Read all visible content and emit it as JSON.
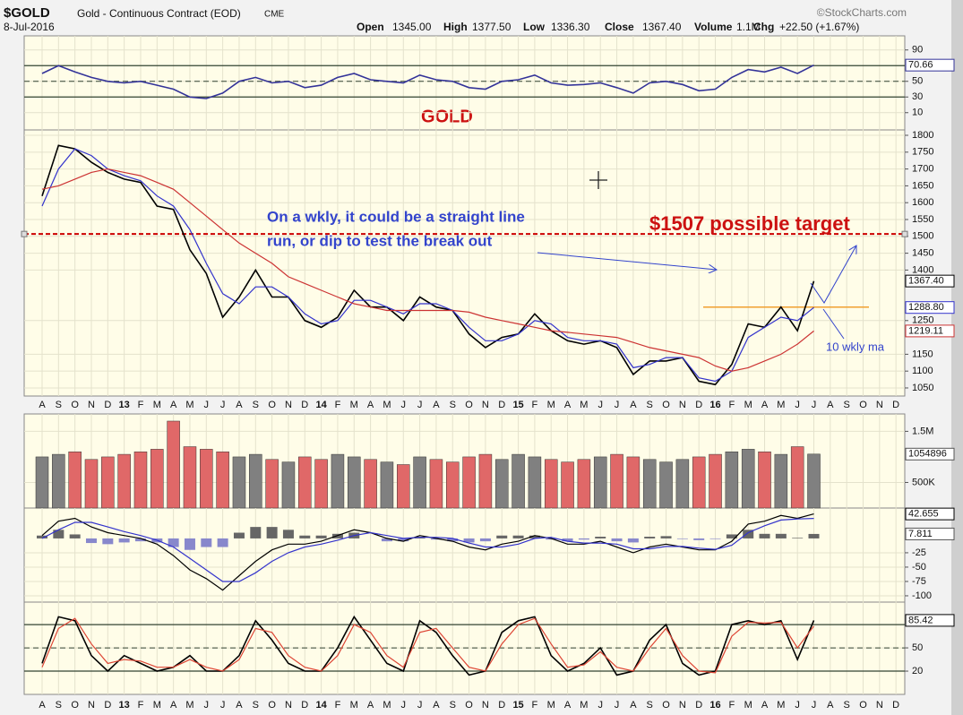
{
  "header": {
    "symbol": "$GOLD",
    "name": "Gold - Continuous Contract (EOD)",
    "exchange": "CME",
    "date": "8-Jul-2016",
    "source": "©StockCharts.com",
    "stats": [
      [
        "Open",
        "1345.00"
      ],
      [
        "High",
        "1377.50"
      ],
      [
        "Low",
        "1336.30"
      ],
      [
        "Close",
        "1367.40"
      ],
      [
        "Volume",
        "1.1M"
      ],
      [
        "Chg",
        "+22.50 (+1.67%)"
      ]
    ]
  },
  "chart_data": [
    {
      "type": "line",
      "categories": [
        "A",
        "S",
        "O",
        "N",
        "D",
        "13",
        "F",
        "M",
        "A",
        "M",
        "J",
        "J",
        "A",
        "S",
        "O",
        "N",
        "D",
        "14",
        "F",
        "M",
        "A",
        "M",
        "J",
        "J",
        "A",
        "S",
        "O",
        "N",
        "D",
        "15",
        "F",
        "M",
        "A",
        "M",
        "J",
        "J",
        "A",
        "S",
        "O",
        "N",
        "D",
        "16",
        "F",
        "M",
        "A",
        "M",
        "J",
        "J",
        "A",
        "S",
        "O",
        "N",
        "D"
      ],
      "series": [
        {
          "color": "#000000",
          "end_label": "1367.40",
          "values": [
            1620,
            1770,
            1760,
            1720,
            1690,
            1670,
            1660,
            1590,
            1580,
            1460,
            1390,
            1260,
            1320,
            1400,
            1320,
            1320,
            1250,
            1230,
            1260,
            1340,
            1290,
            1290,
            1250,
            1320,
            1290,
            1280,
            1210,
            1170,
            1200,
            1210,
            1270,
            1220,
            1190,
            1180,
            1190,
            1170,
            1090,
            1130,
            1130,
            1140,
            1070,
            1060,
            1120,
            1240,
            1230,
            1290,
            1220,
            1367.4,
            null,
            null,
            null,
            null,
            null
          ]
        },
        {
          "color": "#3333cc",
          "end_label": "1288.80",
          "values": [
            1590,
            1700,
            1760,
            1740,
            1700,
            1680,
            1665,
            1620,
            1590,
            1520,
            1420,
            1330,
            1300,
            1350,
            1350,
            1320,
            1270,
            1240,
            1250,
            1310,
            1310,
            1290,
            1270,
            1300,
            1300,
            1280,
            1230,
            1190,
            1190,
            1210,
            1250,
            1240,
            1200,
            1190,
            1190,
            1180,
            1110,
            1120,
            1140,
            1140,
            1080,
            1070,
            1100,
            1200,
            1230,
            1260,
            1250,
            1288.8,
            null,
            null,
            null,
            null,
            null
          ]
        },
        {
          "color": "#cc3333",
          "end_label": "1219.11",
          "values": [
            1640,
            1650,
            1670,
            1690,
            1700,
            1690,
            1680,
            1660,
            1640,
            1600,
            1560,
            1520,
            1480,
            1450,
            1420,
            1380,
            1360,
            1340,
            1320,
            1300,
            1290,
            1280,
            1280,
            1280,
            1280,
            1280,
            1275,
            1260,
            1250,
            1240,
            1230,
            1220,
            1215,
            1210,
            1205,
            1200,
            1185,
            1170,
            1160,
            1150,
            1140,
            1115,
            1100,
            1110,
            1130,
            1150,
            1180,
            1219.11,
            null,
            null,
            null,
            null,
            null
          ]
        }
      ],
      "ylim": [
        1026,
        1816
      ],
      "yticks": [
        1800,
        1750,
        1700,
        1650,
        1600,
        1550,
        1500,
        1450,
        1400,
        1250,
        1150,
        1100,
        1050
      ],
      "grid": true,
      "target_line": {
        "value": 1507,
        "color": "#cc0000"
      },
      "support_line": {
        "value": 1290,
        "color": "#f0a030"
      },
      "annotations": {
        "title": "GOLD",
        "note": [
          "On a wkly, it could be a straight line",
          "run, or dip to test the break out"
        ],
        "target": "$1507 possible target",
        "ma_note": "10 wkly ma"
      }
    },
    {
      "type": "line",
      "series": [
        {
          "color": "#333399",
          "end_label": "70.66",
          "values": [
            60,
            70,
            62,
            55,
            50,
            48,
            50,
            45,
            40,
            30,
            28,
            35,
            50,
            55,
            48,
            50,
            42,
            45,
            55,
            60,
            52,
            50,
            48,
            58,
            52,
            50,
            42,
            40,
            50,
            52,
            58,
            48,
            45,
            46,
            48,
            42,
            35,
            48,
            50,
            46,
            38,
            40,
            55,
            65,
            62,
            68,
            60,
            70.66,
            null,
            null,
            null,
            null,
            null
          ]
        }
      ],
      "ylim": [
        -12,
        108
      ],
      "yticks": [
        90,
        50,
        30,
        10
      ],
      "grid": true,
      "ref_lines": [
        70,
        30
      ],
      "mid_line": 50
    },
    {
      "type": "bar",
      "end_label": "1054896",
      "up_color": "#808080",
      "down_color": "#e06868",
      "values": [
        1000000,
        1050000,
        1100000,
        950000,
        1000000,
        1050000,
        1100000,
        1150000,
        1700000,
        1200000,
        1150000,
        1100000,
        1000000,
        1050000,
        950000,
        900000,
        1000000,
        950000,
        1050000,
        1000000,
        950000,
        900000,
        850000,
        1000000,
        950000,
        900000,
        1000000,
        1050000,
        950000,
        1050000,
        1000000,
        950000,
        900000,
        950000,
        1000000,
        1050000,
        1000000,
        950000,
        900000,
        950000,
        1000000,
        1050000,
        1100000,
        1150000,
        1100000,
        1050000,
        1200000,
        1054896,
        null,
        null,
        null,
        null,
        null
      ],
      "ylim": [
        0,
        1840000
      ],
      "yticks": [
        {
          "value": 1500000,
          "label": "1.5M"
        },
        {
          "value": 500000,
          "label": "500K"
        }
      ],
      "grid": true
    },
    {
      "type": "line",
      "series": [
        {
          "style": "histogram",
          "pos_color": "#666666",
          "neg_color": "#8888cc",
          "end_label": "7.811",
          "values": [
            5,
            15,
            7,
            -8,
            -10,
            -7,
            -5,
            -7,
            -15,
            -20,
            -15,
            -15,
            10,
            20,
            20,
            15,
            5,
            5,
            8,
            10,
            0,
            -5,
            -5,
            3,
            -2,
            -5,
            -7,
            -5,
            5,
            5,
            5,
            -2,
            -5,
            -2,
            3,
            -5,
            -7,
            3,
            4,
            -1,
            -3,
            -1,
            7,
            15,
            8,
            8,
            1,
            7.811,
            null,
            null,
            null,
            null,
            null
          ]
        },
        {
          "color": "#000000",
          "end_label": "42.655",
          "values": [
            5,
            30,
            35,
            20,
            10,
            5,
            0,
            -10,
            -30,
            -55,
            -70,
            -90,
            -65,
            -40,
            -20,
            -10,
            -10,
            -5,
            5,
            15,
            10,
            0,
            -5,
            5,
            0,
            -5,
            -15,
            -20,
            -10,
            -5,
            5,
            0,
            -10,
            -10,
            -5,
            -15,
            -25,
            -15,
            -10,
            -15,
            -20,
            -20,
            -5,
            25,
            30,
            40,
            35,
            42.655,
            null,
            null,
            null,
            null,
            null
          ]
        },
        {
          "color": "#3333cc",
          "values": [
            0,
            15,
            28,
            28,
            20,
            12,
            5,
            -3,
            -15,
            -35,
            -55,
            -75,
            -75,
            -60,
            -40,
            -25,
            -15,
            -10,
            -3,
            5,
            10,
            5,
            0,
            2,
            2,
            0,
            -8,
            -15,
            -15,
            -10,
            0,
            2,
            -5,
            -8,
            -8,
            -10,
            -18,
            -18,
            -14,
            -14,
            -17,
            -19,
            -12,
            10,
            22,
            32,
            34,
            34.84,
            null,
            null,
            null,
            null,
            null
          ]
        }
      ],
      "ylim": [
        -111,
        53
      ],
      "yticks": [
        -25,
        -50,
        -75,
        -100
      ],
      "grid": true
    },
    {
      "type": "line",
      "series": [
        {
          "color": "#000000",
          "end_label": "85.42",
          "values": [
            30,
            90,
            85,
            40,
            20,
            40,
            30,
            20,
            25,
            40,
            20,
            20,
            40,
            85,
            60,
            30,
            20,
            20,
            50,
            90,
            60,
            30,
            20,
            85,
            70,
            40,
            15,
            20,
            70,
            85,
            90,
            40,
            20,
            30,
            50,
            15,
            20,
            60,
            80,
            30,
            15,
            20,
            80,
            85,
            80,
            85,
            35,
            85.42,
            null,
            null,
            null,
            null,
            null
          ]
        },
        {
          "color": "#dd4433",
          "values": [
            25,
            75,
            88,
            55,
            30,
            35,
            33,
            25,
            25,
            35,
            25,
            20,
            35,
            75,
            70,
            40,
            25,
            20,
            40,
            80,
            70,
            40,
            25,
            70,
            75,
            50,
            25,
            20,
            55,
            80,
            88,
            55,
            25,
            28,
            45,
            25,
            20,
            50,
            75,
            40,
            20,
            18,
            65,
            83,
            82,
            83,
            50,
            78,
            null,
            null,
            null,
            null,
            null
          ]
        }
      ],
      "ylim": [
        -10,
        109
      ],
      "yticks": [
        50,
        20
      ],
      "grid": true,
      "ref_lines": [
        80,
        20
      ],
      "mid_line": 50
    }
  ]
}
